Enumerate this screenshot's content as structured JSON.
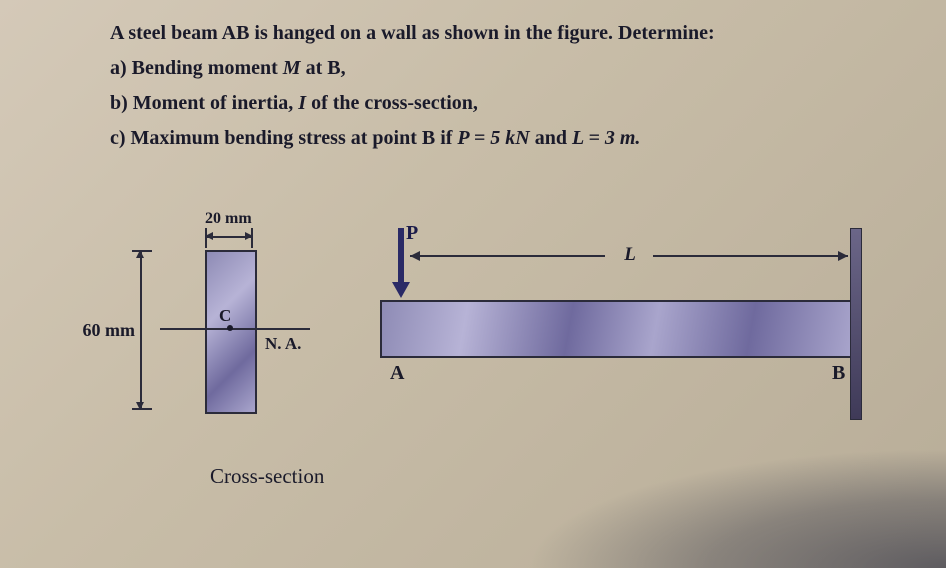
{
  "problem": {
    "intro": "A steel beam AB is hanged on a wall as shown in the figure. Determine:",
    "a": "a) Bending moment M at B,",
    "b": "b) Moment of inertia, I of the cross-section,",
    "c_prefix": "c) Maximum bending stress at point B if ",
    "c_p": "P = 5 kN",
    "c_and": " and ",
    "c_l": "L = 3 m."
  },
  "cross_section": {
    "width_label": "20 mm",
    "height_label": "60 mm",
    "centroid_label": "C",
    "na_label": "N. A.",
    "caption": "Cross-section",
    "width_mm": 20,
    "height_mm": 60,
    "fill_gradient": [
      "#8e8bb5",
      "#b7b3d6",
      "#6f6a9e",
      "#a9a5cc"
    ],
    "border_color": "#2b2b3a"
  },
  "beam": {
    "point_A": "A",
    "point_B": "B",
    "force_label": "P",
    "length_label": "L",
    "P_kN": 5,
    "L_m": 3,
    "beam_fill_gradient": [
      "#8e8bb5",
      "#b7b3d6",
      "#6f6a9e",
      "#a9a5cc"
    ],
    "wall_fill": [
      "#6b6688",
      "#3f3a58"
    ],
    "force_arrow_color": "#2a2a66"
  },
  "page_style": {
    "background_gradient": [
      "#d4c9b8",
      "#c8bda8",
      "#b8ad98"
    ],
    "text_color": "#1a1a2a",
    "font_family": "Times New Roman"
  }
}
